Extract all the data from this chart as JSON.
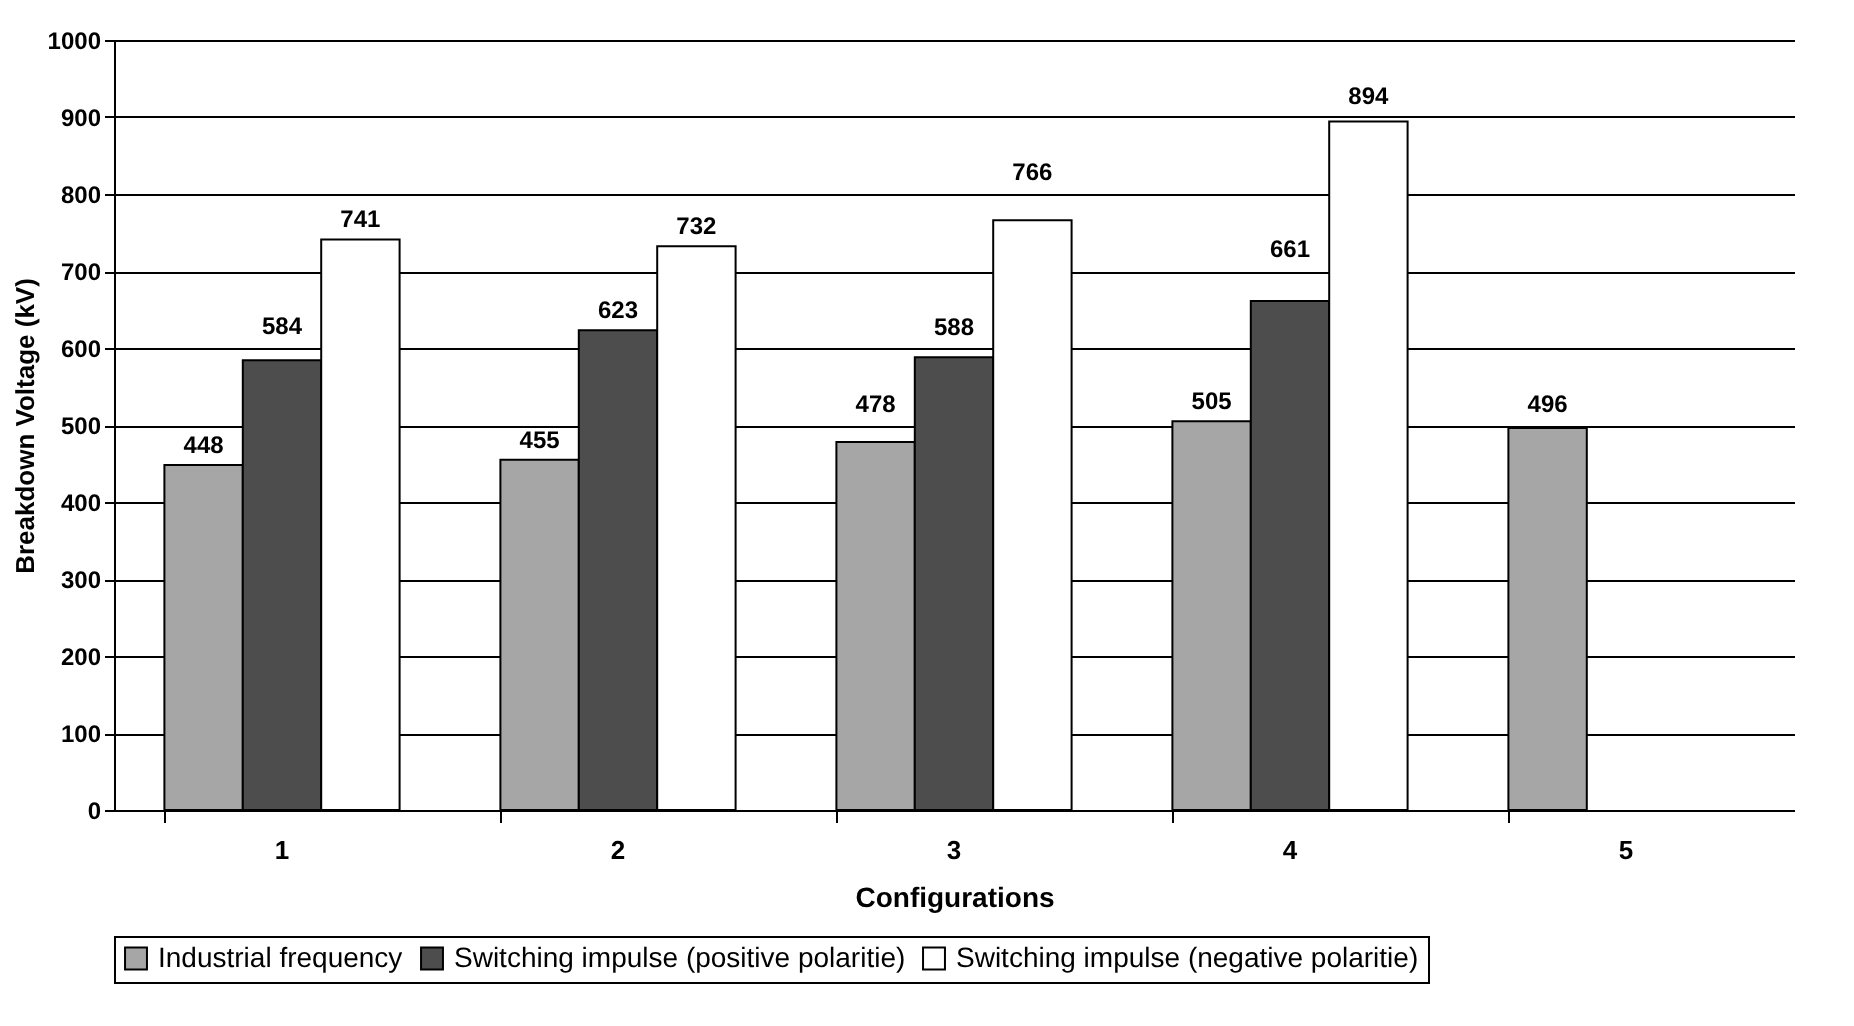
{
  "chart_data": {
    "type": "bar",
    "xlabel": "Configurations",
    "ylabel": "Breakdown Voltage (kV)",
    "categories": [
      "1",
      "2",
      "3",
      "4",
      "5"
    ],
    "series": [
      {
        "name": "Industrial frequency",
        "color": "#a6a6a6",
        "values": [
          448,
          455,
          478,
          505,
          496
        ]
      },
      {
        "name": "Switching impulse (positive polaritie)",
        "color": "#4d4d4d",
        "values": [
          584,
          623,
          588,
          661,
          null
        ]
      },
      {
        "name": "Switching impulse (negative polaritie)",
        "color": "#ffffff",
        "values": [
          741,
          732,
          766,
          894,
          null
        ]
      }
    ],
    "ylim": [
      0,
      1000
    ],
    "yticks": [
      0,
      100,
      200,
      300,
      400,
      500,
      600,
      700,
      800,
      900,
      1000
    ],
    "grid": "y",
    "legend": "bottom",
    "data_labels": true
  }
}
